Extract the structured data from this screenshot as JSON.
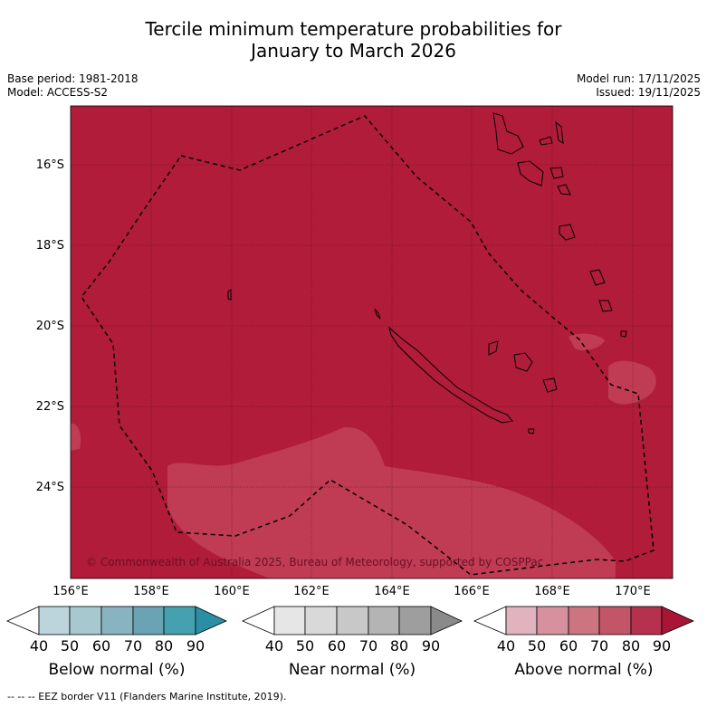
{
  "title": {
    "line1": "Tercile minimum temperature probabilities for",
    "line2": "January to March 2026"
  },
  "meta": {
    "base_period": "Base period: 1981-2018",
    "model": "Model: ACCESS-S2",
    "model_run": "Model run: 17/11/2025",
    "issued": "Issued: 19/11/2025"
  },
  "map": {
    "latitudes": [
      "16°S",
      "18°S",
      "20°S",
      "22°S",
      "24°S"
    ],
    "longitudes": [
      "156°E",
      "158°E",
      "160°E",
      "162°E",
      "164°E",
      "166°E",
      "168°E",
      "170°E"
    ],
    "copyright": "© Commonwealth of Australia 2025, Bureau of Meteorology, supported by COSPPac",
    "background_color": "#b11c3a",
    "lighter_color": "#bf3c54"
  },
  "colorbars": [
    {
      "label": "Below normal (%)",
      "ticks": [
        "40",
        "50",
        "60",
        "70",
        "80",
        "90"
      ],
      "colors": [
        "#ffffff",
        "#bcd4db",
        "#a7c8cf",
        "#88b4c1",
        "#6aa4b4",
        "#45a0b0",
        "#2a8fa4"
      ]
    },
    {
      "label": "Near normal (%)",
      "ticks": [
        "40",
        "50",
        "60",
        "70",
        "80",
        "90"
      ],
      "colors": [
        "#ffffff",
        "#e6e6e6",
        "#d9d9d9",
        "#c8c8c8",
        "#b4b4b4",
        "#9e9e9e",
        "#8a8a8a"
      ]
    },
    {
      "label": "Above normal (%)",
      "ticks": [
        "40",
        "50",
        "60",
        "70",
        "80",
        "90"
      ],
      "colors": [
        "#ffffff",
        "#e0b3be",
        "#d7919e",
        "#cc7480",
        "#c35568",
        "#b5314d",
        "#a81535"
      ]
    }
  ],
  "footer": "--  --  -- EEZ border V11 (Flanders Marine Institute, 2019)."
}
